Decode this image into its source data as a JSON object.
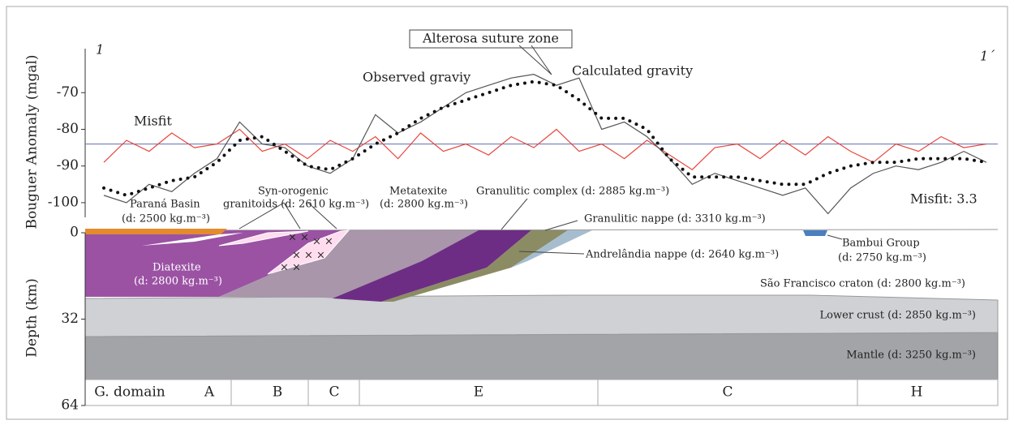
{
  "chart_data": {
    "type": "line",
    "ylabel": "Bouguer Anomaly (mgal)",
    "ylim": [
      -104,
      -58
    ],
    "yticks": [
      -70,
      -80,
      -90,
      -100
    ],
    "reference_line": -84,
    "reference_color": "#6f7fb8",
    "series": [
      {
        "name": "Observed graviy",
        "color": "#555555",
        "values": [
          -98,
          -100,
          -95,
          -97,
          -92,
          -88,
          -78,
          -84,
          -85,
          -90,
          -92,
          -88,
          -76,
          -81,
          -78,
          -74,
          -70,
          -68,
          -66,
          -65,
          -68,
          -66,
          -80,
          -78,
          -82,
          -88,
          -95,
          -92,
          -94,
          -96,
          -98,
          -96,
          -103,
          -96,
          -92,
          -90,
          -91,
          -89,
          -86,
          -89
        ]
      },
      {
        "name": "Calculated gravity",
        "color": "#111111",
        "style": "dotted",
        "values": [
          -96,
          -98,
          -96,
          -94,
          -93,
          -89,
          -83,
          -82,
          -86,
          -90,
          -91,
          -88,
          -84,
          -81,
          -77,
          -74,
          -72,
          -70,
          -68,
          -67,
          -68,
          -72,
          -77,
          -77,
          -80,
          -88,
          -93,
          -93,
          -93,
          -94,
          -95,
          -95,
          -92,
          -90,
          -89,
          -89,
          -88,
          -88,
          -88,
          -89
        ]
      },
      {
        "name": "Misfit",
        "color": "#e8463c",
        "values": [
          -89,
          -83,
          -86,
          -81,
          -85,
          -84,
          -80,
          -86,
          -84,
          -88,
          -83,
          -86,
          -82,
          -88,
          -81,
          -86,
          -84,
          -87,
          -82,
          -85,
          -80,
          -86,
          -84,
          -88,
          -83,
          -87,
          -91,
          -85,
          -84,
          -88,
          -83,
          -87,
          -82,
          -86,
          -89,
          -84,
          -86,
          -82,
          -85,
          -84
        ]
      }
    ],
    "annotations": {
      "left_end": "1",
      "right_end": "1´",
      "suture": "Alterosa suture zone",
      "misfit_value": "Misfit: 3.3"
    }
  },
  "section": {
    "ylabel": "Depth (km)",
    "depth_lim": [
      0,
      64
    ],
    "depth_ticks": [
      0,
      32,
      64
    ],
    "labels": {
      "parana": [
        "Paraná Basin",
        "(d: 2500 kg.m⁻³)"
      ],
      "granitoids": [
        "Syn-orogenic",
        "granitoids (d: 2610 kg.m⁻³)"
      ],
      "metatexite": [
        "Metatexite",
        "(d: 2800 kg.m⁻³)"
      ],
      "granulitic_complex": [
        "Granulitic complex (d: 2885 kg.m⁻³)"
      ],
      "granulitic_nappe": [
        "Granulitic nappe (d: 3310 kg.m⁻³)"
      ],
      "andrelandia": [
        "Andrelândia nappe (d: 2640 kg.m⁻³)"
      ],
      "bambui": [
        "Bambui Group",
        "(d: 2750 kg.m⁻³)"
      ],
      "diatexite": [
        "Diatexite",
        "(d: 2800 kg.m⁻³)"
      ],
      "craton": [
        "São Francisco craton (d: 2800 kg.m⁻³)"
      ],
      "lower_crust": [
        "Lower crust (d: 2850 kg.m⁻³)"
      ],
      "mantle": [
        "Mantle (d: 3250 kg.m⁻³)"
      ]
    },
    "domains": [
      "G. domain",
      "A",
      "B",
      "C",
      "E",
      "C",
      "H"
    ]
  }
}
